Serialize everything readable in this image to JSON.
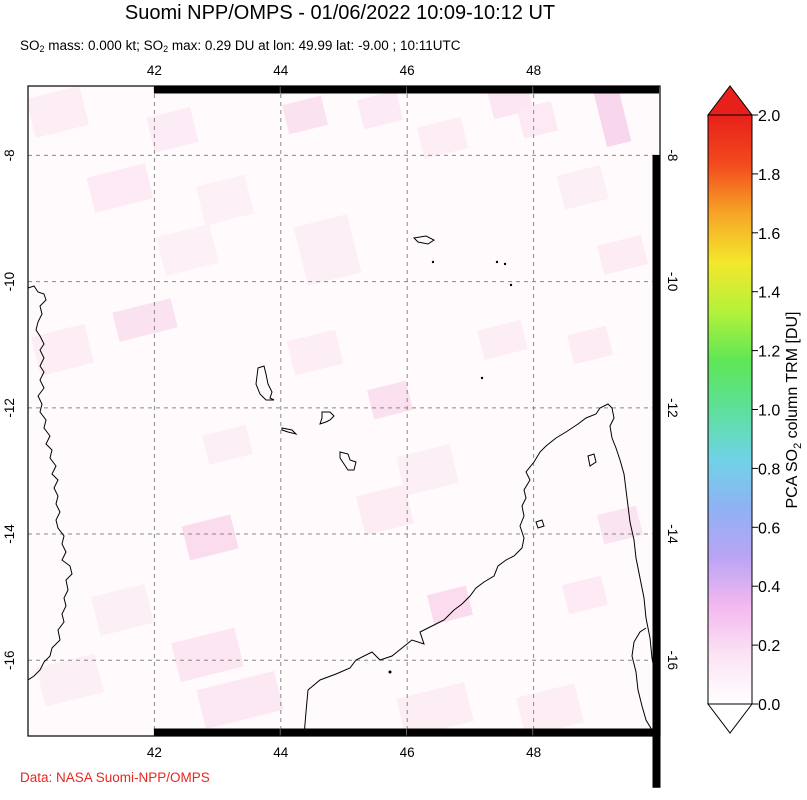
{
  "header": {
    "title": "Suomi NPP/OMPS - 01/06/2022 10:09-10:12 UT",
    "subtitle_so2_1": "SO",
    "subtitle_mid_1": " mass: 0.000 kt; SO",
    "subtitle_rest": " max: 0.29 DU at lon: 49.99 lat: -9.00 ; 10:11UTC",
    "sub_digit": "2"
  },
  "map": {
    "lon_range": [
      40.0,
      50.0
    ],
    "lat_range": [
      -17.2,
      -6.9
    ],
    "lon_ticks": [
      42,
      44,
      46,
      48
    ],
    "lat_ticks": [
      -8,
      -10,
      -12,
      -14,
      -16
    ],
    "lon_tick_labels": [
      "42",
      "44",
      "46",
      "48"
    ],
    "lat_tick_labels": [
      "-8",
      "-10",
      "-12",
      "-14",
      "-16"
    ],
    "gridlines": true
  },
  "colorbar": {
    "title_pre": "PCA SO",
    "title_sub": "2",
    "title_post": " column TRM [DU]",
    "range": [
      0.0,
      2.0
    ],
    "tick_values": [
      0.0,
      0.2,
      0.4,
      0.6,
      0.8,
      1.0,
      1.2,
      1.4,
      1.6,
      1.8,
      2.0
    ],
    "tick_labels": [
      "0.0",
      "0.2",
      "0.4",
      "0.6",
      "0.8",
      "1.0",
      "1.2",
      "1.4",
      "1.6",
      "1.8",
      "2.0"
    ],
    "colors": [
      "#ffffff",
      "#fbe3f3",
      "#f3b8f0",
      "#b9a4f4",
      "#8fb2f4",
      "#6fd3e6",
      "#5ee09a",
      "#5fe656",
      "#b4f23a",
      "#f4e72c",
      "#f7a427",
      "#f24a1e",
      "#e8201a"
    ]
  },
  "credit": "Data: NASA Suomi-NPP/OMPS"
}
